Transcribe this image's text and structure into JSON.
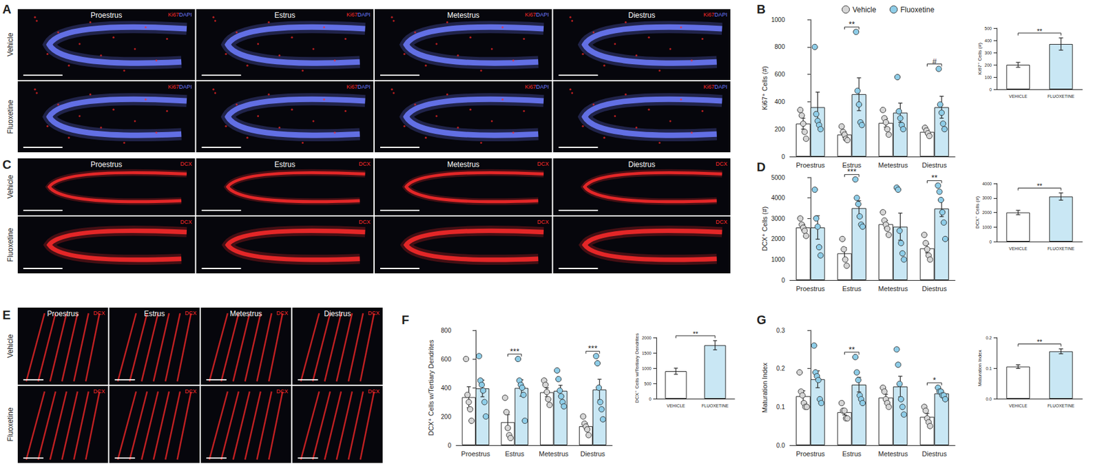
{
  "figure": {
    "images": [
      {
        "panel": "A",
        "columns": [
          "Proestrus",
          "Estrus",
          "Metestrus",
          "Diestrus"
        ],
        "rows": [
          "Vehicle",
          "Fluoxetine"
        ],
        "stain": [
          {
            "text": "Ki67",
            "color": "#ff2a2a"
          },
          {
            "text": "DAPI",
            "color": "#6f7cff"
          }
        ]
      },
      {
        "panel": "C",
        "columns": [
          "Proestrus",
          "Estrus",
          "Metestrus",
          "Diestrus"
        ],
        "rows": [
          "Vehicle",
          "Fluoxetine"
        ],
        "stain": [
          {
            "text": "DCX",
            "color": "#ff2a2a"
          }
        ]
      },
      {
        "panel": "E",
        "columns": [
          "Proestrus",
          "Estrus",
          "Metestrus",
          "Diestrus"
        ],
        "rows": [
          "Vehicle",
          "Fluoxetine"
        ],
        "stain": [
          {
            "text": "DCX",
            "color": "#ff2a2a"
          }
        ]
      }
    ]
  },
  "chart_data": [
    {
      "panel": "B",
      "type": "bar",
      "ylabel": "Ki67⁺ Cells (#)",
      "legend": "top",
      "grid": false,
      "categories": [
        "Proestrus",
        "Estrus",
        "Metestrus",
        "Diestrus"
      ],
      "ylim": [
        0,
        1000
      ],
      "yticks": [
        0,
        200,
        400,
        600,
        800,
        1000
      ],
      "series": [
        {
          "name": "Vehicle",
          "color": "#ffffff",
          "values": [
            240,
            160,
            245,
            180
          ],
          "errors": [
            40,
            20,
            30,
            15
          ],
          "points": [
            [
              340,
              300,
              240,
              180,
              130
            ],
            [
              220,
              180,
              160,
              130,
              120
            ],
            [
              340,
              280,
              250,
              200,
              160
            ],
            [
              210,
              190,
              170,
              150
            ]
          ]
        },
        {
          "name": "Fluoxetine",
          "color": "#c9e7f4",
          "values": [
            360,
            455,
            320,
            360
          ],
          "errors": [
            110,
            120,
            70,
            80
          ],
          "points": [
            [
              800,
              310,
              260,
              230,
              200
            ],
            [
              910,
              480,
              380,
              250,
              230
            ],
            [
              580,
              330,
              280,
              230,
              200
            ],
            [
              640,
              380,
              320,
              240,
              200
            ]
          ]
        }
      ],
      "annotations": [
        {
          "category": "Estrus",
          "label": "**"
        },
        {
          "category": "Diestrus",
          "label": "#"
        }
      ],
      "inset": {
        "categories": [
          "VEHICLE",
          "FLUOXETINE"
        ],
        "values": [
          200,
          370
        ],
        "errors": [
          20,
          50
        ],
        "colors": [
          "#ffffff",
          "#c9e7f4"
        ],
        "ylabel": "Ki67⁺ Cells (#)",
        "ylim": [
          0,
          500
        ],
        "yticks": [
          0,
          100,
          200,
          300,
          400,
          500
        ],
        "annotation": "**"
      }
    },
    {
      "panel": "D",
      "type": "bar",
      "ylabel": "DCX⁺ Cells (#)",
      "grid": false,
      "categories": [
        "Proestrus",
        "Estrus",
        "Metestrus",
        "Diestrus"
      ],
      "ylim": [
        0,
        5000
      ],
      "yticks": [
        0,
        1000,
        2000,
        3000,
        4000,
        5000
      ],
      "series": [
        {
          "name": "Vehicle",
          "color": "#ffffff",
          "values": [
            2560,
            1300,
            2720,
            1540
          ],
          "errors": [
            145,
            285,
            185,
            215
          ],
          "points": [
            [
              3000,
              2700,
              2550,
              2400,
              2150
            ],
            [
              2000,
              1500,
              1000,
              700
            ],
            [
              3300,
              2900,
              2700,
              2500,
              2200
            ],
            [
              2200,
              1800,
              1500,
              1200,
              1000
            ]
          ]
        },
        {
          "name": "Fluoxetine",
          "color": "#c9e7f4",
          "values": [
            2560,
            3500,
            2600,
            3480
          ],
          "errors": [
            570,
            360,
            660,
            390
          ],
          "points": [
            [
              4400,
              3000,
              2600,
              1600,
              1200
            ],
            [
              4900,
              4000,
              3700,
              3100,
              2700,
              2600
            ],
            [
              4500,
              4400,
              2400,
              1800,
              1300,
              1000
            ],
            [
              4600,
              4300,
              3900,
              3300,
              2800,
              2000
            ]
          ]
        }
      ],
      "annotations": [
        {
          "category": "Estrus",
          "label": "***"
        },
        {
          "category": "Diestrus",
          "label": "**"
        }
      ],
      "inset": {
        "categories": [
          "VEHICLE",
          "FLUOXETINE"
        ],
        "values": [
          2000,
          3100
        ],
        "errors": [
          150,
          250
        ],
        "colors": [
          "#ffffff",
          "#c9e7f4"
        ],
        "ylabel": "DCX⁺ Cells (#)",
        "ylim": [
          0,
          4000
        ],
        "yticks": [
          0,
          1000,
          2000,
          3000,
          4000
        ],
        "annotation": "**"
      }
    },
    {
      "panel": "F",
      "type": "bar",
      "ylabel": "DCX⁺ Cells w/Tertiary Dendrites",
      "grid": false,
      "categories": [
        "Proestrus",
        "Estrus",
        "Metestrus",
        "Diestrus"
      ],
      "ylim": [
        0,
        800
      ],
      "yticks": [
        0,
        200,
        400,
        600,
        800
      ],
      "series": [
        {
          "name": "Vehicle",
          "color": "#ffffff",
          "values": [
            334,
            160,
            368,
            132
          ],
          "errors": [
            73,
            53,
            31,
            22
          ],
          "points": [
            [
              600,
              350,
              300,
              250,
              170
            ],
            [
              330,
              230,
              120,
              70,
              50
            ],
            [
              450,
              420,
              370,
              320,
              280
            ],
            [
              200,
              150,
              130,
              110,
              70
            ]
          ]
        },
        {
          "name": "Fluoxetine",
          "color": "#c9e7f4",
          "values": [
            395,
            398,
            378,
            387
          ],
          "errors": [
            58,
            57,
            39,
            72
          ],
          "points": [
            [
              620,
              450,
              420,
              380,
              300,
              200
            ],
            [
              600,
              450,
              420,
              400,
              350,
              170
            ],
            [
              520,
              460,
              380,
              340,
              300,
              270
            ],
            [
              620,
              570,
              400,
              300,
              250,
              180
            ]
          ]
        }
      ],
      "annotations": [
        {
          "category": "Estrus",
          "label": "***"
        },
        {
          "category": "Diestrus",
          "label": "***"
        }
      ],
      "inset": {
        "categories": [
          "VEHICLE",
          "FLUOXETINE"
        ],
        "values": [
          900,
          1750
        ],
        "errors": [
          100,
          150
        ],
        "colors": [
          "#ffffff",
          "#c9e7f4"
        ],
        "ylabel": "DCX⁺ Cells w/Tertiary Dendrites",
        "ylim": [
          0,
          2000
        ],
        "yticks": [
          0,
          500,
          1000,
          1500,
          2000
        ],
        "annotation": "**"
      }
    },
    {
      "panel": "G",
      "type": "bar",
      "ylabel": "Maturation Index",
      "grid": false,
      "categories": [
        "Proestrus",
        "Estrus",
        "Metestrus",
        "Diestrus"
      ],
      "ylim": [
        0,
        0.3
      ],
      "yticks": [
        {
          "value": 0,
          "label": "0.0"
        },
        0.1,
        0.2,
        0.3
      ],
      "series": [
        {
          "name": "Vehicle",
          "color": "#ffffff",
          "values": [
            0.128,
            0.086,
            0.124,
            0.074
          ],
          "errors": [
            0.014,
            0.007,
            0.009,
            0.009
          ],
          "points": [
            [
              0.19,
              0.14,
              0.13,
              0.11,
              0.1,
              0.1
            ],
            [
              0.11,
              0.09,
              0.09,
              0.07,
              0.07
            ],
            [
              0.15,
              0.14,
              0.12,
              0.11,
              0.1
            ],
            [
              0.1,
              0.09,
              0.07,
              0.06,
              0.05
            ]
          ]
        },
        {
          "name": "Fluoxetine",
          "color": "#c9e7f4",
          "values": [
            0.172,
            0.158,
            0.153,
            0.135
          ],
          "errors": [
            0.022,
            0.019,
            0.027,
            0.004
          ],
          "points": [
            [
              0.26,
              0.19,
              0.18,
              0.17,
              0.12,
              0.11
            ],
            [
              0.23,
              0.19,
              0.17,
              0.13,
              0.12,
              0.11
            ],
            [
              0.25,
              0.21,
              0.16,
              0.12,
              0.1,
              0.08
            ],
            [
              0.15,
              0.14,
              0.14,
              0.13,
              0.13,
              0.12
            ]
          ]
        }
      ],
      "annotations": [
        {
          "category": "Estrus",
          "label": "**"
        },
        {
          "category": "Diestrus",
          "label": "*"
        }
      ],
      "inset": {
        "categories": [
          "VEHICLE",
          "FLUOXETINE"
        ],
        "values": [
          0.105,
          0.155
        ],
        "errors": [
          0.006,
          0.008
        ],
        "colors": [
          "#ffffff",
          "#c9e7f4"
        ],
        "ylabel": "Maturation Index",
        "ylim": [
          0,
          0.2
        ],
        "yticks": [
          {
            "value": 0,
            "label": "0.0"
          },
          0.1,
          0.2
        ],
        "annotation": "**"
      }
    }
  ]
}
